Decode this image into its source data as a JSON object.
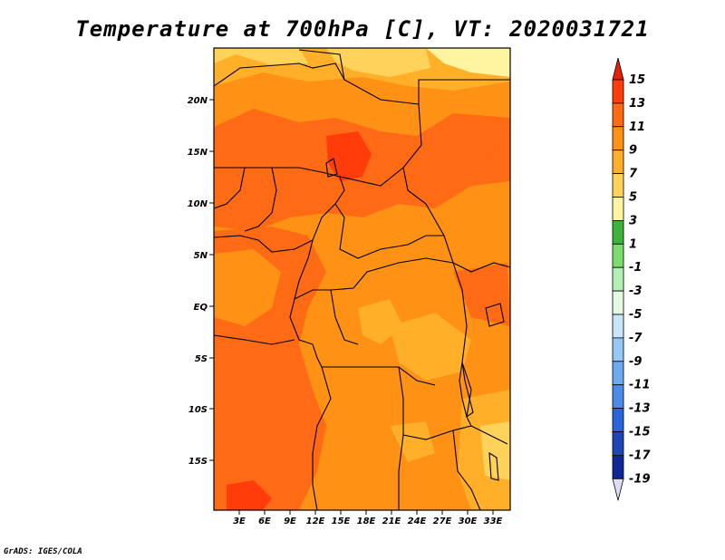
{
  "title": "Temperature at 700hPa [C], VT: 2020031721",
  "footer": "GrADS: IGES/COLA",
  "map": {
    "lon_labels": [
      "3E",
      "6E",
      "9E",
      "12E",
      "15E",
      "18E",
      "21E",
      "24E",
      "27E",
      "30E",
      "33E"
    ],
    "lat_labels": [
      "20N",
      "15N",
      "10N",
      "5N",
      "EQ",
      "5S",
      "10S",
      "15S"
    ],
    "fill_description": "shaded contours of 700hPa temperature over Central Africa with country borders",
    "colors": {
      "c13_15": "#ff3c0a",
      "c11_13": "#ff6a14",
      "c9_11": "#ff9114",
      "c7_9": "#ffaf28",
      "c5_7": "#ffd25a",
      "border": "#000000"
    }
  },
  "colorbar": {
    "labels": [
      "15",
      "13",
      "11",
      "9",
      "7",
      "5",
      "3",
      "1",
      "-1",
      "-3",
      "-5",
      "-7",
      "-9",
      "-11",
      "-13",
      "-15",
      "-17",
      "-19"
    ],
    "colors": [
      "#e71f0b",
      "#ff3c0a",
      "#ff6a14",
      "#ff9114",
      "#ffaf28",
      "#ffd25a",
      "#fff5a0",
      "#3cb43c",
      "#7ddc6e",
      "#b4f0b4",
      "#e1fae1",
      "#c8e6fa",
      "#96c8f5",
      "#6eaaf0",
      "#4b8ce6",
      "#2864dc",
      "#1e46b4",
      "#0f2896",
      "#000a5a",
      "#dcdcf5"
    ]
  }
}
